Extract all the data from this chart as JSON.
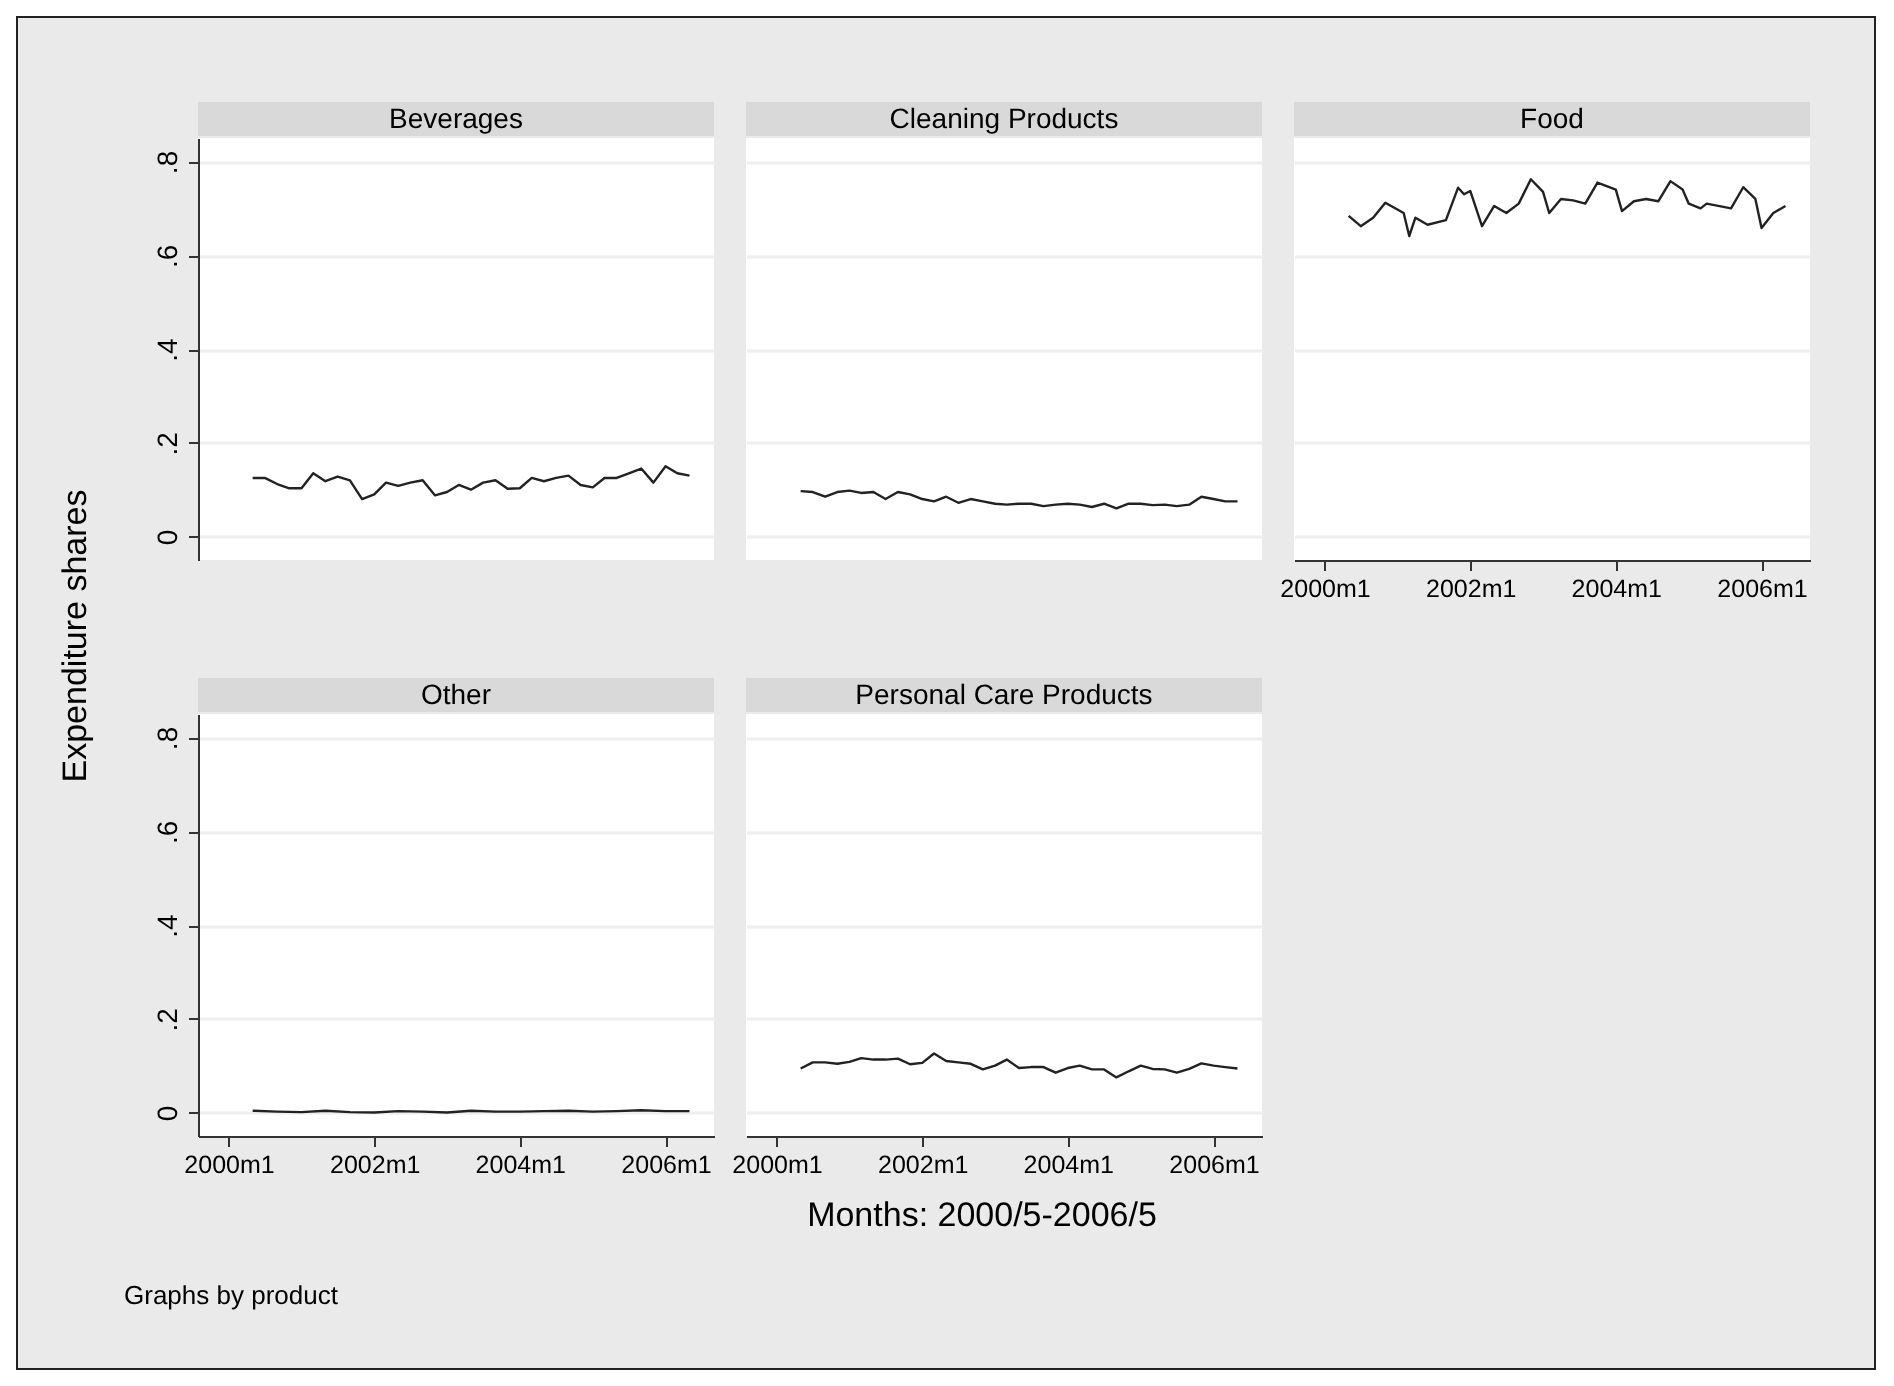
{
  "chart_data": [
    {
      "type": "line",
      "title": "Beverages",
      "ylabel": "Expenditure shares",
      "tick_labels": "y",
      "grid": "y",
      "xlim": [
        "1999-08",
        "2006-09"
      ],
      "ylim": [
        -0.05,
        0.85
      ],
      "yticks": [
        0,
        {
          "value": 0.2,
          "label": ".2"
        },
        {
          "value": 0.4,
          "label": ".4"
        },
        {
          "value": 0.6,
          "label": ".6"
        },
        {
          "value": 0.8,
          "label": ".8"
        }
      ],
      "x": [
        "2000-05",
        "2000-07",
        "2000-09",
        "2000-11",
        "2001-01",
        "2001-03",
        "2001-05",
        "2001-07",
        "2001-09",
        "2001-11",
        "2002-01",
        "2002-03",
        "2002-05",
        "2002-07",
        "2002-09",
        "2002-11",
        "2003-01",
        "2003-03",
        "2003-05",
        "2003-07",
        "2003-09",
        "2003-11",
        "2004-01",
        "2004-03",
        "2004-05",
        "2004-07",
        "2004-09",
        "2004-11",
        "2005-01",
        "2005-03",
        "2005-05",
        "2005-07",
        "2005-09",
        "2005-11",
        "2006-01",
        "2006-03",
        "2006-05"
      ],
      "series": [
        {
          "color": "#222222",
          "values": [
            0.125,
            0.125,
            0.112,
            0.103,
            0.103,
            0.135,
            0.118,
            0.128,
            0.12,
            0.08,
            0.09,
            0.115,
            0.108,
            0.115,
            0.12,
            0.088,
            0.095,
            0.11,
            0.1,
            0.115,
            0.12,
            0.102,
            0.103,
            0.125,
            0.118,
            0.125,
            0.13,
            0.11,
            0.105,
            0.125,
            0.125,
            0.135,
            0.145,
            0.115,
            0.15,
            0.135,
            0.13
          ]
        }
      ]
    },
    {
      "type": "line",
      "title": "Cleaning Products",
      "tick_labels": false,
      "grid": "y",
      "xlim": [
        "1999-08",
        "2006-09"
      ],
      "ylim": [
        -0.05,
        0.85
      ],
      "yticks": [
        {
          "value": 0,
          "label": null
        },
        {
          "value": 0.2,
          "label": null
        },
        {
          "value": 0.4,
          "label": null
        },
        {
          "value": 0.6,
          "label": null
        },
        {
          "value": 0.8,
          "label": null
        }
      ],
      "x": [
        "2000-05",
        "2000-07",
        "2000-09",
        "2000-11",
        "2001-01",
        "2001-03",
        "2001-05",
        "2001-07",
        "2001-09",
        "2001-11",
        "2002-01",
        "2002-03",
        "2002-05",
        "2002-07",
        "2002-09",
        "2002-11",
        "2003-01",
        "2003-03",
        "2003-05",
        "2003-07",
        "2003-09",
        "2003-11",
        "2004-01",
        "2004-03",
        "2004-05",
        "2004-07",
        "2004-09",
        "2004-11",
        "2005-01",
        "2005-03",
        "2005-05",
        "2005-07",
        "2005-09",
        "2005-11",
        "2006-01",
        "2006-03",
        "2006-05"
      ],
      "series": [
        {
          "color": "#222222",
          "values": [
            0.097,
            0.095,
            0.085,
            0.095,
            0.098,
            0.093,
            0.095,
            0.08,
            0.095,
            0.09,
            0.08,
            0.075,
            0.085,
            0.072,
            0.08,
            0.075,
            0.07,
            0.068,
            0.07,
            0.07,
            0.065,
            0.068,
            0.07,
            0.068,
            0.063,
            0.07,
            0.06,
            0.07,
            0.07,
            0.067,
            0.068,
            0.065,
            0.068,
            0.085,
            0.08,
            0.075,
            0.075
          ]
        }
      ]
    },
    {
      "type": "line",
      "title": "Food",
      "tick_labels": "x",
      "grid": "y",
      "xlim": [
        "1999-08",
        "2006-09"
      ],
      "ylim": [
        -0.05,
        0.85
      ],
      "xticks": [
        {
          "value": "2000-01",
          "label": "2000m1"
        },
        {
          "value": "2002-01",
          "label": "2002m1"
        },
        {
          "value": "2004-01",
          "label": "2004m1"
        },
        {
          "value": "2006-01",
          "label": "2006m1"
        }
      ],
      "yticks": [
        {
          "value": 0,
          "label": null
        },
        {
          "value": 0.2,
          "label": null
        },
        {
          "value": 0.4,
          "label": null
        },
        {
          "value": 0.6,
          "label": null
        },
        {
          "value": 0.8,
          "label": null
        }
      ],
      "x": [
        "2000-05",
        "2000-07",
        "2000-09",
        "2000-11",
        "2001-02",
        "2001-03",
        "2001-04",
        "2001-06",
        "2001-09",
        "2001-11",
        "2001-12",
        "2002-01",
        "2002-03",
        "2002-05",
        "2002-07",
        "2002-09",
        "2002-11",
        "2003-01",
        "2003-02",
        "2003-04",
        "2003-06",
        "2003-08",
        "2003-10",
        "2004-01",
        "2004-02",
        "2004-04",
        "2004-06",
        "2004-08",
        "2004-10",
        "2004-12",
        "2005-01",
        "2005-03",
        "2005-04",
        "2005-08",
        "2005-10",
        "2005-12",
        "2006-01",
        "2006-03",
        "2006-05"
      ],
      "series": [
        {
          "color": "#222222",
          "values": [
            0.684,
            0.662,
            0.68,
            0.712,
            0.69,
            0.641,
            0.68,
            0.665,
            0.675,
            0.744,
            0.73,
            0.737,
            0.662,
            0.705,
            0.69,
            0.71,
            0.762,
            0.735,
            0.69,
            0.72,
            0.717,
            0.71,
            0.755,
            0.74,
            0.694,
            0.715,
            0.72,
            0.715,
            0.758,
            0.74,
            0.71,
            0.7,
            0.71,
            0.7,
            0.745,
            0.72,
            0.658,
            0.69,
            0.705
          ]
        }
      ]
    },
    {
      "type": "line",
      "title": "Other",
      "grid": "y",
      "annotations": [
        "Graphs by product"
      ],
      "xlim": [
        "1999-08",
        "2006-09"
      ],
      "ylim": [
        -0.05,
        0.85
      ],
      "xticks": [
        {
          "value": "2000-01",
          "label": "2000m1"
        },
        {
          "value": "2002-01",
          "label": "2002m1"
        },
        {
          "value": "2004-01",
          "label": "2004m1"
        },
        {
          "value": "2006-01",
          "label": "2006m1"
        }
      ],
      "yticks": [
        0,
        {
          "value": 0.2,
          "label": ".2"
        },
        {
          "value": 0.4,
          "label": ".4"
        },
        {
          "value": 0.6,
          "label": ".6"
        },
        {
          "value": 0.8,
          "label": ".8"
        }
      ],
      "x": [
        "2000-05",
        "2000-09",
        "2001-01",
        "2001-05",
        "2001-09",
        "2002-01",
        "2002-05",
        "2002-09",
        "2003-01",
        "2003-05",
        "2003-09",
        "2004-01",
        "2004-05",
        "2004-09",
        "2005-01",
        "2005-05",
        "2005-09",
        "2006-01",
        "2006-05"
      ],
      "series": [
        {
          "color": "#222222",
          "values": [
            0.004,
            0.002,
            0.001,
            0.004,
            0.001,
            0.0,
            0.003,
            0.002,
            0.0,
            0.004,
            0.002,
            0.002,
            0.003,
            0.004,
            0.002,
            0.003,
            0.005,
            0.003,
            0.003
          ]
        }
      ]
    },
    {
      "type": "line",
      "title": "Personal Care Products",
      "xlabel": "Months: 2000/5-2006/5",
      "tick_labels": "x",
      "grid": "y",
      "xlim": [
        "1999-08",
        "2006-09"
      ],
      "ylim": [
        -0.05,
        0.85
      ],
      "xticks": [
        {
          "value": "2000-01",
          "label": "2000m1"
        },
        {
          "value": "2002-01",
          "label": "2002m1"
        },
        {
          "value": "2004-01",
          "label": "2004m1"
        },
        {
          "value": "2006-01",
          "label": "2006m1"
        }
      ],
      "yticks": [
        {
          "value": 0,
          "label": null
        },
        {
          "value": 0.2,
          "label": null
        },
        {
          "value": 0.4,
          "label": null
        },
        {
          "value": 0.6,
          "label": null
        },
        {
          "value": 0.8,
          "label": null
        }
      ],
      "x": [
        "2000-05",
        "2000-07",
        "2000-09",
        "2000-11",
        "2001-01",
        "2001-03",
        "2001-05",
        "2001-07",
        "2001-09",
        "2001-11",
        "2002-01",
        "2002-03",
        "2002-05",
        "2002-07",
        "2002-09",
        "2002-11",
        "2003-01",
        "2003-03",
        "2003-05",
        "2003-07",
        "2003-09",
        "2003-11",
        "2004-01",
        "2004-03",
        "2004-05",
        "2004-07",
        "2004-09",
        "2004-11",
        "2005-01",
        "2005-03",
        "2005-05",
        "2005-07",
        "2005-09",
        "2005-11",
        "2006-01",
        "2006-03",
        "2006-05"
      ],
      "series": [
        {
          "color": "#222222",
          "values": [
            0.094,
            0.107,
            0.107,
            0.104,
            0.108,
            0.116,
            0.113,
            0.113,
            0.115,
            0.103,
            0.106,
            0.126,
            0.11,
            0.107,
            0.104,
            0.092,
            0.1,
            0.113,
            0.095,
            0.097,
            0.097,
            0.085,
            0.095,
            0.1,
            0.092,
            0.092,
            0.075,
            0.088,
            0.1,
            0.093,
            0.092,
            0.085,
            0.093,
            0.105,
            0.1,
            0.097,
            0.094
          ]
        }
      ]
    }
  ]
}
